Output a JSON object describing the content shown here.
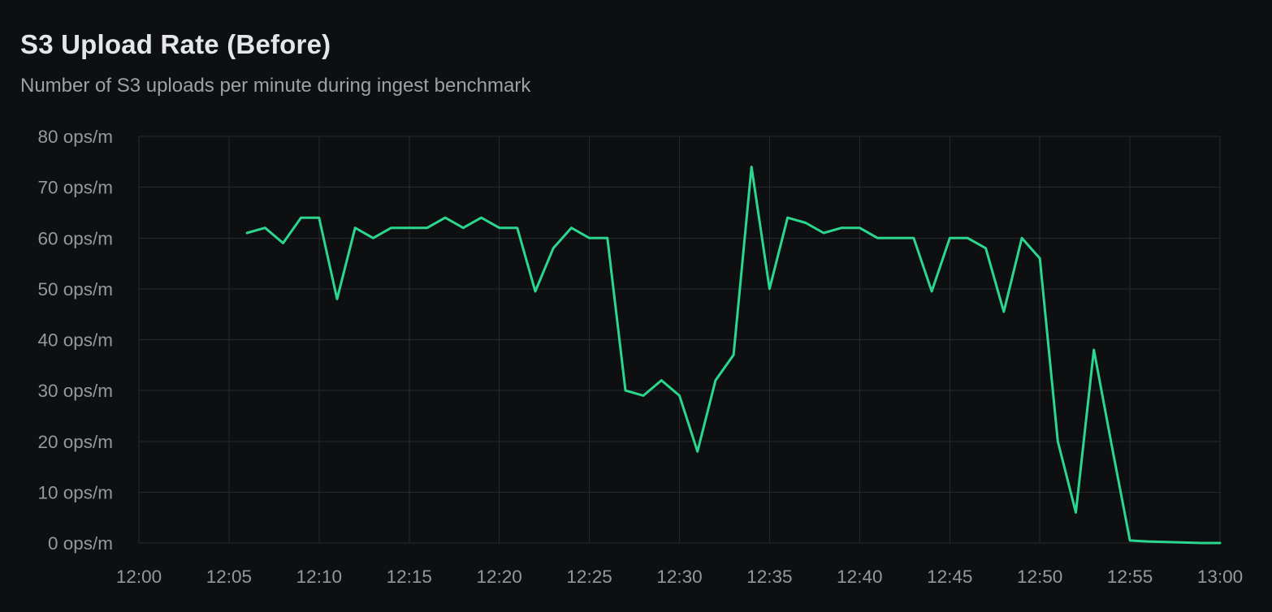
{
  "header": {
    "title": "S3 Upload Rate (Before)",
    "subtitle": "Number of S3 uploads per minute during ingest benchmark"
  },
  "chart_data": {
    "type": "line",
    "title": "S3 Upload Rate (Before)",
    "subtitle": "Number of S3 uploads per minute during ingest benchmark",
    "xlabel": "",
    "ylabel": "ops/m",
    "ylim": [
      0,
      80
    ],
    "x_range": [
      "12:00",
      "13:00"
    ],
    "grid": true,
    "legend": false,
    "x_ticks": [
      "12:00",
      "12:05",
      "12:10",
      "12:15",
      "12:20",
      "12:25",
      "12:30",
      "12:35",
      "12:40",
      "12:45",
      "12:50",
      "12:55",
      "13:00"
    ],
    "y_ticks": [
      "0 ops/m",
      "10 ops/m",
      "20 ops/m",
      "30 ops/m",
      "40 ops/m",
      "50 ops/m",
      "60 ops/m",
      "70 ops/m",
      "80 ops/m"
    ],
    "y_tick_values": [
      0,
      10,
      20,
      30,
      40,
      50,
      60,
      70,
      80
    ],
    "series": [
      {
        "name": "S3 uploads per minute",
        "color": "#2bd78f",
        "points": [
          {
            "time": "12:06",
            "value": 61
          },
          {
            "time": "12:07",
            "value": 62
          },
          {
            "time": "12:08",
            "value": 59
          },
          {
            "time": "12:09",
            "value": 64
          },
          {
            "time": "12:10",
            "value": 64
          },
          {
            "time": "12:11",
            "value": 48
          },
          {
            "time": "12:12",
            "value": 62
          },
          {
            "time": "12:13",
            "value": 60
          },
          {
            "time": "12:14",
            "value": 62
          },
          {
            "time": "12:15",
            "value": 62
          },
          {
            "time": "12:16",
            "value": 62
          },
          {
            "time": "12:17",
            "value": 64
          },
          {
            "time": "12:18",
            "value": 62
          },
          {
            "time": "12:19",
            "value": 64
          },
          {
            "time": "12:20",
            "value": 62
          },
          {
            "time": "12:21",
            "value": 62
          },
          {
            "time": "12:22",
            "value": 49.5
          },
          {
            "time": "12:23",
            "value": 58
          },
          {
            "time": "12:24",
            "value": 62
          },
          {
            "time": "12:25",
            "value": 60
          },
          {
            "time": "12:26",
            "value": 60
          },
          {
            "time": "12:27",
            "value": 30
          },
          {
            "time": "12:28",
            "value": 29
          },
          {
            "time": "12:29",
            "value": 32
          },
          {
            "time": "12:30",
            "value": 29
          },
          {
            "time": "12:31",
            "value": 18
          },
          {
            "time": "12:32",
            "value": 32
          },
          {
            "time": "12:33",
            "value": 37
          },
          {
            "time": "12:34",
            "value": 74
          },
          {
            "time": "12:35",
            "value": 50
          },
          {
            "time": "12:36",
            "value": 64
          },
          {
            "time": "12:37",
            "value": 63
          },
          {
            "time": "12:38",
            "value": 61
          },
          {
            "time": "12:39",
            "value": 62
          },
          {
            "time": "12:40",
            "value": 62
          },
          {
            "time": "12:41",
            "value": 60
          },
          {
            "time": "12:42",
            "value": 60
          },
          {
            "time": "12:43",
            "value": 60
          },
          {
            "time": "12:44",
            "value": 49.5
          },
          {
            "time": "12:45",
            "value": 60
          },
          {
            "time": "12:46",
            "value": 60
          },
          {
            "time": "12:47",
            "value": 58
          },
          {
            "time": "12:48",
            "value": 45.5
          },
          {
            "time": "12:49",
            "value": 60
          },
          {
            "time": "12:50",
            "value": 56
          },
          {
            "time": "12:51",
            "value": 20
          },
          {
            "time": "12:52",
            "value": 6
          },
          {
            "time": "12:53",
            "value": 38
          },
          {
            "time": "12:54",
            "value": 19
          },
          {
            "time": "12:55",
            "value": 0.5
          },
          {
            "time": "12:56",
            "value": 0.3
          },
          {
            "time": "12:57",
            "value": 0.2
          },
          {
            "time": "12:58",
            "value": 0.1
          },
          {
            "time": "12:59",
            "value": 0
          },
          {
            "time": "13:00",
            "value": 0
          }
        ]
      }
    ],
    "colors": {
      "background": "#0e0f11",
      "grid": "#26282e",
      "axis_text": "#95989f",
      "title": "#e4e6e9",
      "subtitle": "#9da0a6"
    }
  }
}
